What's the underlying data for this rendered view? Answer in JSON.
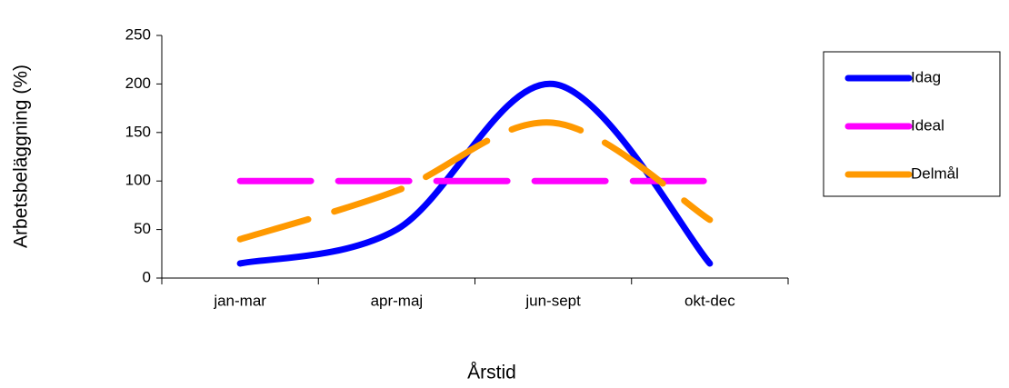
{
  "chart_data": {
    "type": "line",
    "y_label": "Arbetsbeläggning (%)",
    "x_label": "Årstid",
    "categories": [
      "jan-mar",
      "apr-maj",
      "jun-sept",
      "okt-dec"
    ],
    "series": [
      {
        "name": "Idag",
        "color": "#0000ff",
        "dash": "solid",
        "values": [
          15,
          50,
          200,
          15
        ]
      },
      {
        "name": "Ideal",
        "color": "#ff00ff",
        "dash": "dashed",
        "values": [
          100,
          100,
          100,
          100
        ]
      },
      {
        "name": "Delmål",
        "color": "#ff9900",
        "dash": "dashed",
        "values": [
          40,
          90,
          160,
          60
        ]
      }
    ],
    "ylim": [
      0,
      250
    ],
    "yticks": [
      0,
      50,
      100,
      150,
      200,
      250
    ],
    "smooth": true,
    "legend": "right"
  }
}
